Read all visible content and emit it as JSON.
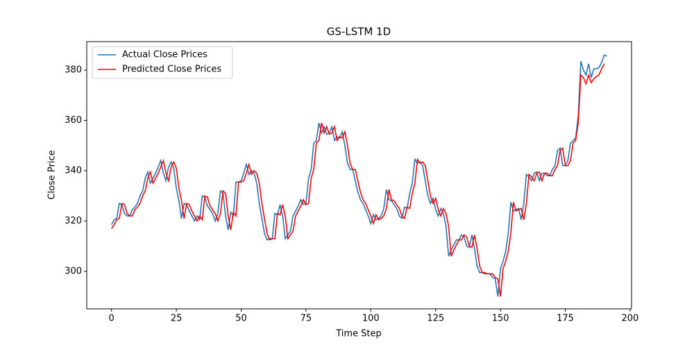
{
  "chart_data": {
    "type": "line",
    "title": "GS-LSTM 1D",
    "x_label": "Time Step",
    "y_label": "Close Price",
    "xlim": [
      -9.55,
      200.55
    ],
    "ylim": [
      285.1,
      391.3
    ],
    "xticks": [
      0,
      25,
      50,
      75,
      100,
      125,
      150,
      175,
      200
    ],
    "yticks": [
      300,
      320,
      340,
      360,
      380
    ],
    "legend": "upper left",
    "series": [
      {
        "name": "Actual Close Prices",
        "color": "#1f77b4",
        "values": [
          318.5,
          320.5,
          321,
          327,
          326.5,
          323,
          322,
          322,
          324.5,
          325.5,
          327,
          330,
          332,
          337,
          339.5,
          335,
          337,
          339,
          341.5,
          344,
          339,
          336,
          341.5,
          343.5,
          341,
          333,
          328,
          321,
          327,
          326.5,
          324,
          322,
          320,
          322,
          320.5,
          330,
          329.5,
          326,
          324.5,
          323,
          320,
          323,
          332,
          331,
          322,
          316.5,
          323.5,
          322,
          335.5,
          335.5,
          336,
          339,
          342.5,
          338.5,
          340,
          339,
          335,
          327,
          321,
          315,
          312.5,
          313,
          313,
          323,
          322.5,
          326.5,
          322,
          313,
          314.5,
          316,
          322,
          324,
          326,
          328.5,
          326.5,
          327,
          337,
          340.5,
          351,
          352,
          359,
          355,
          357.5,
          354.5,
          355,
          357.5,
          352,
          353.5,
          353,
          355.5,
          350,
          343,
          340.5,
          340.5,
          336,
          331.5,
          328.5,
          327,
          324.5,
          322,
          319,
          322.5,
          320.5,
          321,
          322,
          325,
          332.5,
          328.5,
          328,
          326.5,
          325,
          322,
          321,
          325.5,
          325,
          331,
          335,
          344.5,
          343,
          343.5,
          342,
          336,
          330,
          327,
          329,
          324.5,
          322,
          325,
          323,
          318,
          306,
          308.5,
          310.5,
          312.5,
          312.5,
          314.5,
          313.5,
          310,
          309.5,
          314.5,
          309,
          302,
          299.5,
          299.5,
          299,
          299,
          299,
          297.5,
          297,
          290,
          301,
          304,
          308,
          315,
          327.5,
          324,
          324.5,
          325,
          320.5,
          327,
          338.5,
          337.5,
          336,
          339,
          339.5,
          336,
          339,
          339,
          338,
          338,
          340.5,
          342,
          348,
          349,
          342,
          342,
          344,
          351,
          352,
          353,
          362,
          383.5,
          380,
          378,
          382.5,
          377,
          380.5,
          380.5,
          381,
          383,
          386,
          385.5
        ]
      },
      {
        "name": "Predicted Close Prices",
        "color": "#ff0000",
        "values": [
          317,
          318.5,
          320.5,
          321,
          327,
          326.5,
          323,
          322,
          322,
          324.5,
          325.5,
          327,
          330,
          332,
          337,
          339.5,
          335,
          337,
          339,
          341.5,
          344,
          339,
          336,
          341.5,
          343.5,
          341,
          333,
          328,
          321,
          327,
          326.5,
          324,
          322,
          320,
          322,
          320.5,
          330,
          329.5,
          326,
          324.5,
          323,
          320,
          323,
          332,
          331,
          322,
          316.5,
          323.5,
          322,
          335.5,
          335.5,
          336,
          339,
          342.5,
          338.5,
          340,
          339,
          335,
          327,
          321,
          315,
          312.5,
          313,
          313,
          323,
          322.5,
          326.5,
          322,
          313,
          314.5,
          316,
          322,
          324,
          326,
          328.5,
          326.5,
          327,
          337,
          340.5,
          351,
          352,
          359,
          355,
          357.5,
          354.5,
          355,
          357.5,
          352,
          353.5,
          353,
          355.5,
          350,
          343,
          340.5,
          340.5,
          336,
          331.5,
          328.5,
          327,
          324.5,
          322,
          319,
          322.5,
          320.5,
          321,
          322,
          325,
          332.5,
          328.5,
          328,
          326.5,
          325,
          322,
          321,
          325.5,
          325,
          331,
          335,
          344.5,
          343,
          343.5,
          342,
          336,
          330,
          327,
          329,
          324.5,
          322,
          325,
          323,
          318,
          306,
          308.5,
          310.5,
          312.5,
          312.5,
          314.5,
          313.5,
          310,
          309.5,
          314.5,
          309,
          302,
          299.5,
          299.5,
          299,
          299,
          299,
          297.5,
          297,
          290,
          301,
          304,
          308,
          315,
          327.5,
          324,
          324.5,
          325,
          320.5,
          327,
          338.5,
          337.5,
          336,
          339,
          339.5,
          336,
          339,
          339,
          338,
          338,
          340.5,
          342,
          348,
          349,
          342,
          342,
          344,
          351,
          352,
          359,
          378,
          377,
          374.5,
          378,
          375,
          376.5,
          377.5,
          378,
          380.5,
          382.5
        ]
      }
    ]
  }
}
